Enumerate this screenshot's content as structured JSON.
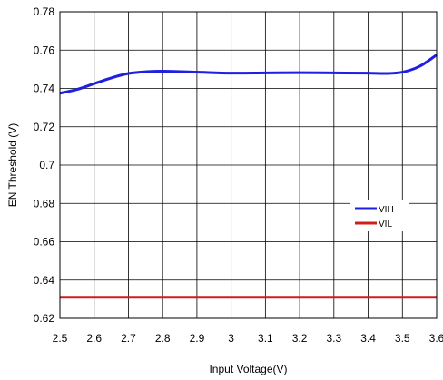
{
  "chart_data": {
    "type": "line",
    "title": "",
    "xlabel": "Input Voltage(V)",
    "ylabel": "EN Threshold (V)",
    "xlim": [
      2.5,
      3.6
    ],
    "ylim": [
      0.62,
      0.78
    ],
    "x_ticks": [
      "2.5",
      "2.6",
      "2.7",
      "2.8",
      "2.9",
      "3",
      "3.1",
      "3.2",
      "3.3",
      "3.4",
      "3.5",
      "3.6"
    ],
    "y_ticks": [
      "0.78",
      "0.76",
      "0.74",
      "0.72",
      "0.7",
      "0.68",
      "0.66",
      "0.64",
      "0.62"
    ],
    "grid": true,
    "legend_position": "right-middle",
    "series": [
      {
        "name": "VIH",
        "color": "#1f1fe0",
        "x": [
          2.5,
          2.55,
          2.6,
          2.65,
          2.7,
          2.75,
          2.8,
          2.9,
          3.0,
          3.1,
          3.2,
          3.3,
          3.4,
          3.45,
          3.5,
          3.55,
          3.6
        ],
        "y": [
          0.7375,
          0.7395,
          0.7425,
          0.7455,
          0.7478,
          0.7487,
          0.749,
          0.7485,
          0.748,
          0.7481,
          0.7482,
          0.7481,
          0.748,
          0.7478,
          0.7485,
          0.7515,
          0.7575
        ]
      },
      {
        "name": "VIL",
        "color": "#cc1f1f",
        "x": [
          2.5,
          3.6
        ],
        "y": [
          0.631,
          0.631
        ]
      }
    ]
  }
}
